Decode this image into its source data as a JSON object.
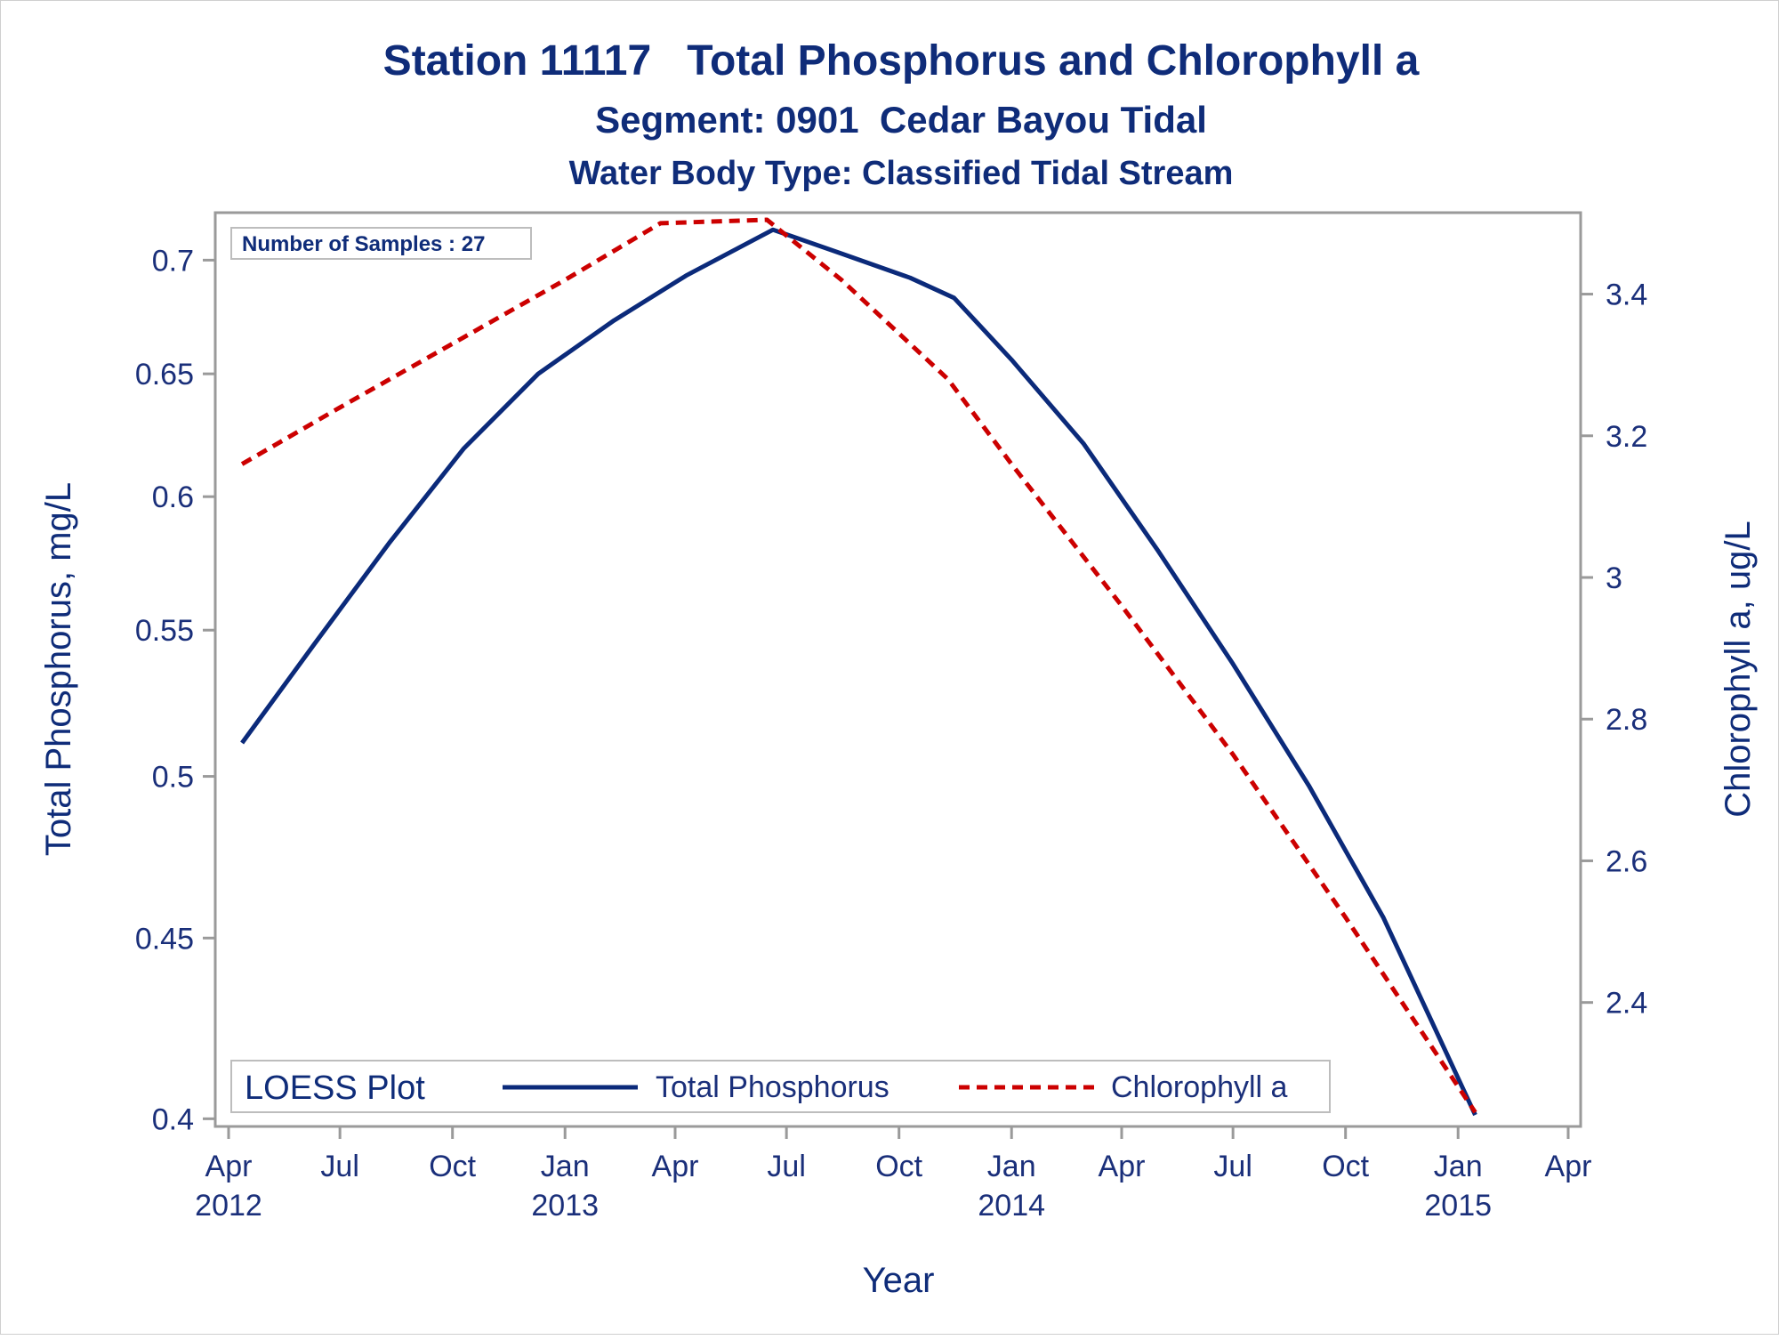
{
  "chart_data": {
    "type": "line",
    "title": "Station 11117   Total Phosphorus and Chlorophyll a",
    "subtitle": "Segment: 0901  Cedar Bayou Tidal",
    "subtitle2": "Water Body Type: Classified Tidal Stream",
    "inset_label": "Number of Samples : 27",
    "xlabel": "Year",
    "ylabel": "Total Phosphorus, mg/L",
    "y2label": "Chlorophyll a, ug/L",
    "x_ticks": [
      {
        "date": "2012-04-01",
        "line1": "Apr",
        "line2": "2012"
      },
      {
        "date": "2012-07-01",
        "line1": "Jul",
        "line2": ""
      },
      {
        "date": "2012-10-01",
        "line1": "Oct",
        "line2": ""
      },
      {
        "date": "2013-01-01",
        "line1": "Jan",
        "line2": "2013"
      },
      {
        "date": "2013-04-01",
        "line1": "Apr",
        "line2": ""
      },
      {
        "date": "2013-07-01",
        "line1": "Jul",
        "line2": ""
      },
      {
        "date": "2013-10-01",
        "line1": "Oct",
        "line2": ""
      },
      {
        "date": "2014-01-01",
        "line1": "Jan",
        "line2": "2014"
      },
      {
        "date": "2014-04-01",
        "line1": "Apr",
        "line2": ""
      },
      {
        "date": "2014-07-01",
        "line1": "Jul",
        "line2": ""
      },
      {
        "date": "2014-10-01",
        "line1": "Oct",
        "line2": ""
      },
      {
        "date": "2015-01-01",
        "line1": "Jan",
        "line2": "2015"
      },
      {
        "date": "2015-04-01",
        "line1": "Apr",
        "line2": ""
      }
    ],
    "y_ticks": [
      "0.4",
      "0.45",
      "0.5",
      "0.55",
      "0.6",
      "0.65",
      "0.7"
    ],
    "y_scale": "log",
    "ylim": [
      0.398,
      0.722
    ],
    "y2_ticks": [
      "2.4",
      "2.6",
      "2.8",
      "3",
      "3.2",
      "3.4"
    ],
    "y2lim": [
      2.225,
      3.515
    ],
    "legend": {
      "title": "LOESS Plot",
      "placement": "bottom-left",
      "entries": [
        "Total Phosphorus",
        "Chlorophyll a"
      ]
    },
    "series": [
      {
        "name": "Total Phosphorus",
        "axis": "left",
        "color": "#0b2a7a",
        "style": "solid",
        "points": [
          {
            "x": "2012-04-12",
            "y": 0.511
          },
          {
            "x": "2012-06-10",
            "y": 0.545
          },
          {
            "x": "2012-08-10",
            "y": 0.582
          },
          {
            "x": "2012-10-10",
            "y": 0.619
          },
          {
            "x": "2012-12-10",
            "y": 0.65
          },
          {
            "x": "2013-02-10",
            "y": 0.673
          },
          {
            "x": "2013-04-10",
            "y": 0.693
          },
          {
            "x": "2013-06-20",
            "y": 0.714
          },
          {
            "x": "2013-08-15",
            "y": 0.703
          },
          {
            "x": "2013-10-10",
            "y": 0.692
          },
          {
            "x": "2013-11-15",
            "y": 0.683
          },
          {
            "x": "2014-01-01",
            "y": 0.656
          },
          {
            "x": "2014-03-01",
            "y": 0.621
          },
          {
            "x": "2014-05-01",
            "y": 0.579
          },
          {
            "x": "2014-07-01",
            "y": 0.538
          },
          {
            "x": "2014-09-01",
            "y": 0.497
          },
          {
            "x": "2014-11-01",
            "y": 0.456
          },
          {
            "x": "2015-01-15",
            "y": 0.401
          }
        ]
      },
      {
        "name": "Chlorophyll a",
        "axis": "right",
        "color": "#cc0000",
        "style": "dashed",
        "points": [
          {
            "x": "2012-04-12",
            "y": 3.16
          },
          {
            "x": "2012-07-01",
            "y": 3.24
          },
          {
            "x": "2012-10-01",
            "y": 3.33
          },
          {
            "x": "2013-01-01",
            "y": 3.42
          },
          {
            "x": "2013-03-20",
            "y": 3.5
          },
          {
            "x": "2013-06-15",
            "y": 3.505
          },
          {
            "x": "2013-08-15",
            "y": 3.42
          },
          {
            "x": "2013-11-10",
            "y": 3.28
          },
          {
            "x": "2014-01-01",
            "y": 3.16
          },
          {
            "x": "2014-04-01",
            "y": 2.96
          },
          {
            "x": "2014-07-01",
            "y": 2.75
          },
          {
            "x": "2014-10-01",
            "y": 2.52
          },
          {
            "x": "2015-01-15",
            "y": 2.245
          }
        ]
      }
    ]
  }
}
